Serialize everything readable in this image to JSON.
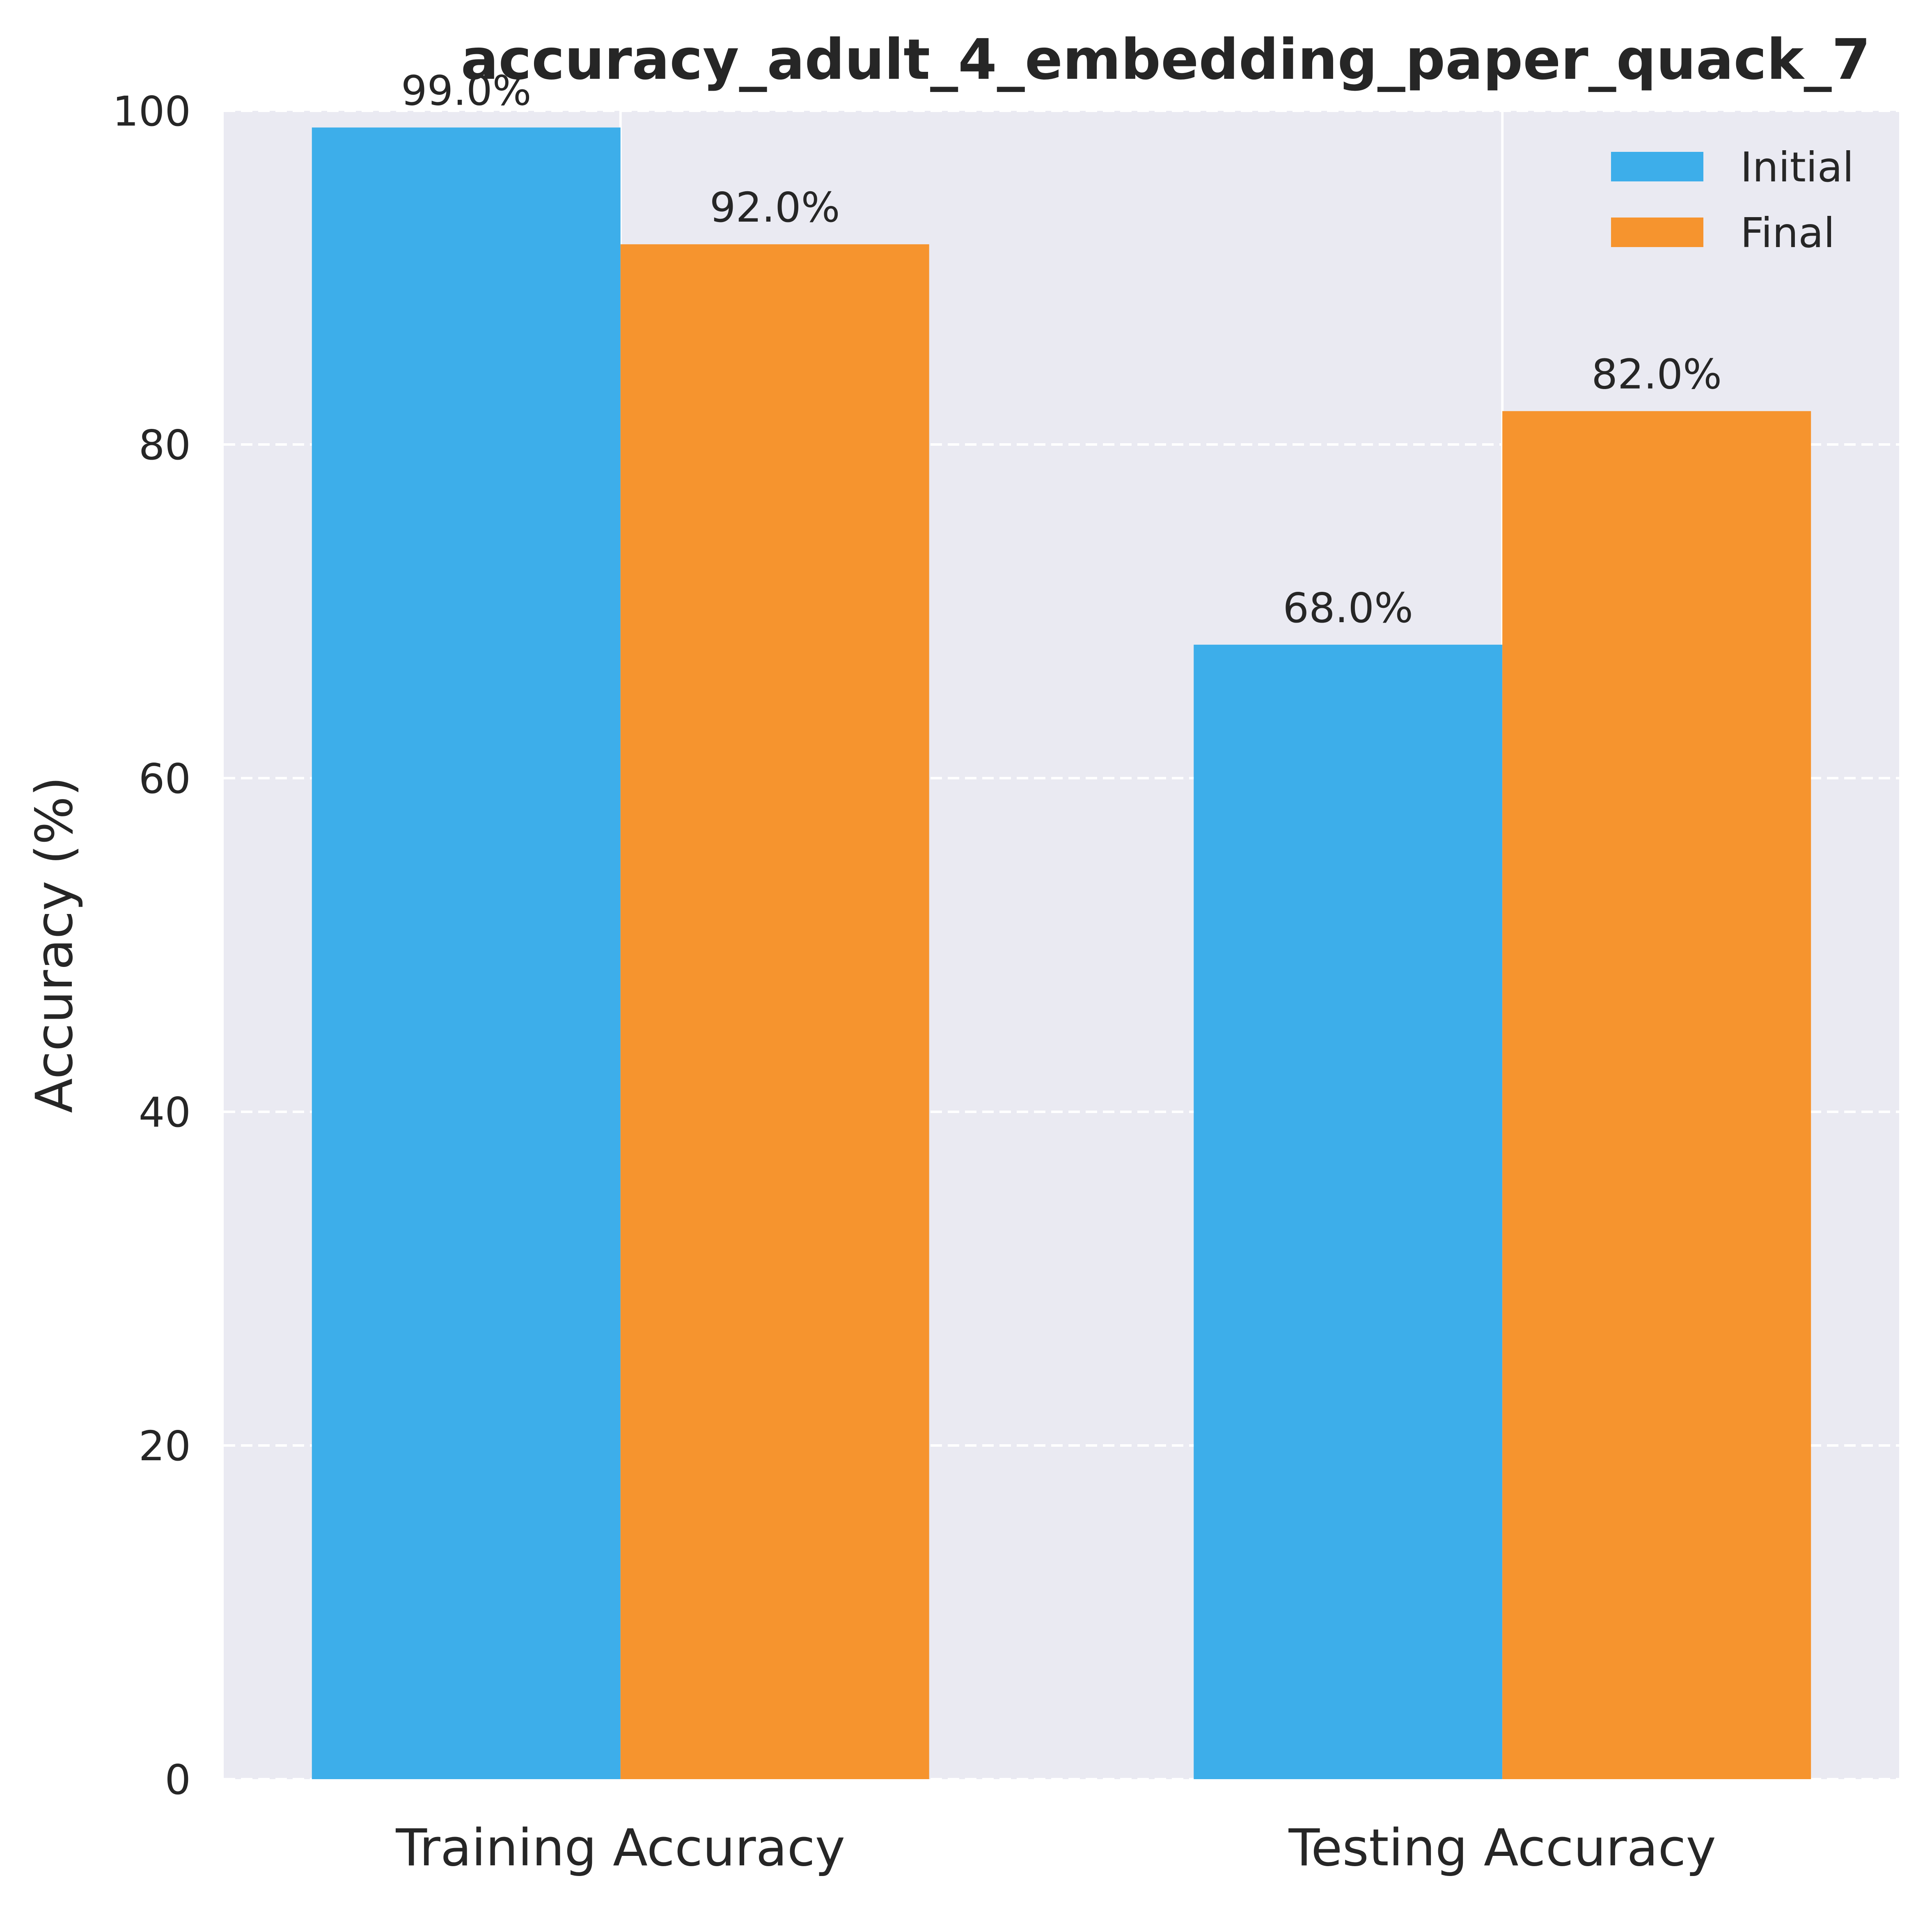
{
  "chart_data": {
    "type": "bar",
    "title": "accuracy_adult_4_embedding_paper_quack_7",
    "xlabel": "",
    "ylabel": "Accuracy (%)",
    "categories": [
      "Training Accuracy",
      "Testing Accuracy"
    ],
    "series": [
      {
        "name": "Initial",
        "color": "#3daeea",
        "values": [
          99.0,
          68.0
        ],
        "labels": [
          "99.0%",
          "68.0%"
        ]
      },
      {
        "name": "Final",
        "color": "#f6942e",
        "values": [
          92.0,
          82.0
        ],
        "labels": [
          "92.0%",
          "82.0%"
        ]
      }
    ],
    "ylim": [
      0,
      100
    ],
    "yticks": [
      0,
      20,
      40,
      60,
      80,
      100
    ],
    "ytick_labels": [
      "0",
      "20",
      "40",
      "60",
      "80",
      "100"
    ],
    "grid": "y, dashed",
    "legend": "top-right",
    "background": "#eaeaf2"
  }
}
